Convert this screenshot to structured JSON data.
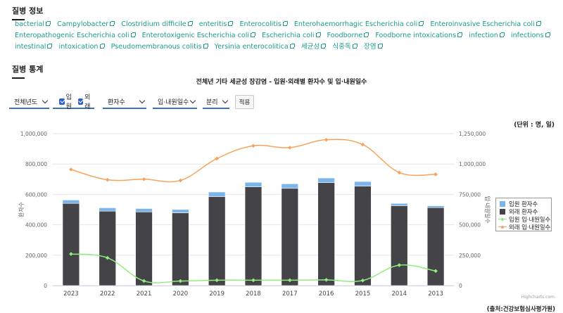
{
  "sections": {
    "disease_info_title": "질병 정보",
    "disease_stats_title": "질병 통계"
  },
  "tags": [
    "bacterial",
    "Campylobacter",
    "Clostridium difficile",
    "enteritis",
    "Enterocolitis",
    "Enterohaemorrhagic Escherichia coli",
    "Enteroinvasive Escherichia coli",
    "Enteropathogenic Escherichia coli",
    "Enterotoxigenic Escherichia coli",
    "Escherichia coli",
    "Foodborne",
    "Foodborne intoxications",
    "infection",
    "infections",
    "intestinal",
    "intoxication",
    "Pseudomembranous colitis",
    "Yersinia enterocolitica",
    "세균성",
    "식중독",
    "장염"
  ],
  "controls": {
    "year_select": "전체년도",
    "inpatient_label": "입원",
    "outpatient_label": "외래",
    "metric_select": "환자수",
    "days_select": "입·내원일수",
    "mode_select": "분리",
    "apply_button": "적용"
  },
  "unit_label": "(단위 :   명, 일)",
  "source_label": "(출처:건강보험심사평가원)",
  "credits": "Highcharts.com",
  "colors": {
    "inpatient_patients": "#7cb5ec",
    "outpatient_patients": "#434348",
    "inpatient_days": "#90ed7d",
    "outpatient_days": "#f7a35c",
    "tag_link": "#1a9d8c",
    "control_underline": "#3b73b9"
  },
  "chart_data": {
    "type": "bar",
    "title": "전체년    기타 세균성 장감염 - 입원·외래별 환자수 및 입·내원일수",
    "categories": [
      "2023",
      "2022",
      "2021",
      "2020",
      "2019",
      "2018",
      "2017",
      "2016",
      "2015",
      "2014",
      "2013"
    ],
    "y_left": {
      "label": "환자수",
      "min": 0,
      "max": 1000000,
      "ticks": [
        "0",
        "200,000",
        "400,000",
        "600,000",
        "800,000",
        "1,000,000"
      ]
    },
    "y_right": {
      "label": "입·내원일수",
      "min": 0,
      "max": 1250000,
      "ticks": [
        "0",
        "250,000",
        "500,000",
        "750,000",
        "1,000,000",
        "1,250,000"
      ]
    },
    "stacked": true,
    "series": [
      {
        "name": "입원 환자수",
        "type": "column",
        "axis": "left",
        "values": [
          22000,
          22000,
          22000,
          22000,
          30000,
          30000,
          30000,
          30000,
          30000,
          15000,
          12000
        ]
      },
      {
        "name": "외래 환자수",
        "type": "column",
        "axis": "left",
        "values": [
          541000,
          490000,
          485000,
          479000,
          586000,
          650000,
          640000,
          678000,
          655000,
          526000,
          513000
        ]
      },
      {
        "name": "입원 입·내원일수",
        "type": "line",
        "axis": "right",
        "values": [
          260000,
          228000,
          38000,
          37000,
          44000,
          44000,
          44000,
          47000,
          42000,
          168000,
          120000
        ]
      },
      {
        "name": "외래 입·내원일수",
        "type": "line",
        "axis": "right",
        "values": [
          955000,
          870000,
          875000,
          865000,
          1045000,
          1150000,
          1135000,
          1200000,
          1160000,
          930000,
          915000
        ]
      }
    ],
    "legend": "right",
    "grid": true
  }
}
